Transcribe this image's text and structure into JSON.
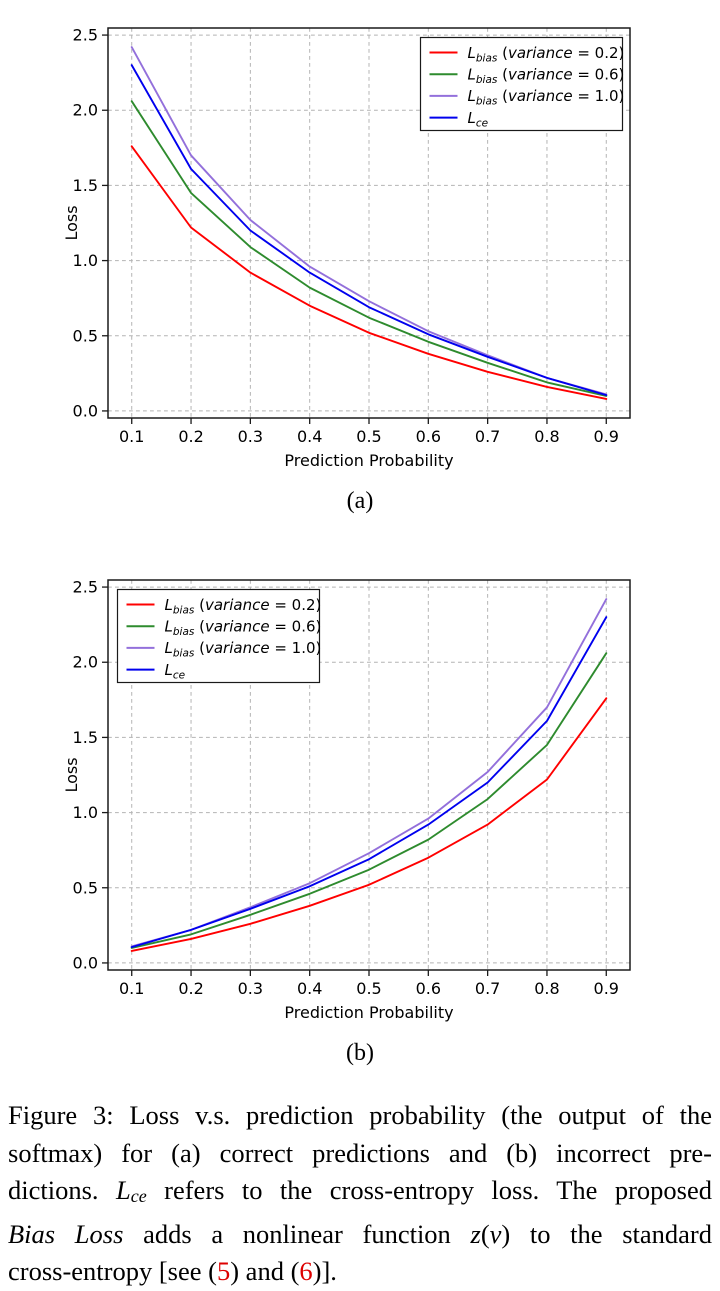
{
  "figure": {
    "sub_labels": [
      "(a)",
      "(b)"
    ]
  },
  "chart_data": [
    {
      "id": "a",
      "type": "line",
      "title": "",
      "xlabel": "Prediction Probability",
      "ylabel": "Loss",
      "xlim": [
        0.06,
        0.94
      ],
      "ylim": [
        -0.047,
        2.547
      ],
      "xticks": [
        0.1,
        0.2,
        0.3,
        0.4,
        0.5,
        0.6,
        0.7,
        0.8,
        0.9
      ],
      "xtick_labels": [
        "0.1",
        "0.2",
        "0.3",
        "0.4",
        "0.5",
        "0.6",
        "0.7",
        "0.8",
        "0.9"
      ],
      "yticks": [
        0.0,
        0.5,
        1.0,
        1.5,
        2.0,
        2.5
      ],
      "ytick_labels": [
        "0.0",
        "0.5",
        "1.0",
        "1.5",
        "2.0",
        "2.5"
      ],
      "grid": true,
      "legend_pos": "top-right",
      "sub_label": "(a)",
      "x": [
        0.1,
        0.2,
        0.3,
        0.4,
        0.5,
        0.6,
        0.7,
        0.8,
        0.9
      ],
      "series": [
        {
          "name": "L_bias (variance = 0.2)",
          "color": "#ff0000",
          "label_parts": {
            "sym": "L",
            "sub": "bias",
            "arg": "variance",
            "val": "0.2"
          },
          "values": [
            1.76,
            1.22,
            0.92,
            0.7,
            0.52,
            0.38,
            0.26,
            0.16,
            0.08
          ]
        },
        {
          "name": "L_bias (variance = 0.6)",
          "color": "#2e8b2e",
          "label_parts": {
            "sym": "L",
            "sub": "bias",
            "arg": "variance",
            "val": "0.6"
          },
          "values": [
            2.06,
            1.45,
            1.09,
            0.82,
            0.62,
            0.46,
            0.32,
            0.19,
            0.1
          ]
        },
        {
          "name": "L_bias (variance = 1.0)",
          "color": "#9370db",
          "label_parts": {
            "sym": "L",
            "sub": "bias",
            "arg": "variance",
            "val": "1.0"
          },
          "values": [
            2.42,
            1.7,
            1.27,
            0.96,
            0.73,
            0.53,
            0.37,
            0.22,
            0.11
          ]
        },
        {
          "name": "L_ce",
          "color": "#0000ee",
          "label_parts": {
            "sym": "L",
            "sub": "ce",
            "arg": "",
            "val": ""
          },
          "values": [
            2.3,
            1.61,
            1.2,
            0.92,
            0.69,
            0.51,
            0.36,
            0.22,
            0.105
          ]
        }
      ]
    },
    {
      "id": "b",
      "type": "line",
      "title": "",
      "xlabel": "Prediction Probability",
      "ylabel": "Loss",
      "xlim": [
        0.06,
        0.94
      ],
      "ylim": [
        -0.047,
        2.547
      ],
      "xticks": [
        0.1,
        0.2,
        0.3,
        0.4,
        0.5,
        0.6,
        0.7,
        0.8,
        0.9
      ],
      "xtick_labels": [
        "0.1",
        "0.2",
        "0.3",
        "0.4",
        "0.5",
        "0.6",
        "0.7",
        "0.8",
        "0.9"
      ],
      "yticks": [
        0.0,
        0.5,
        1.0,
        1.5,
        2.0,
        2.5
      ],
      "ytick_labels": [
        "0.0",
        "0.5",
        "1.0",
        "1.5",
        "2.0",
        "2.5"
      ],
      "grid": true,
      "legend_pos": "top-left",
      "sub_label": "(b)",
      "x": [
        0.1,
        0.2,
        0.3,
        0.4,
        0.5,
        0.6,
        0.7,
        0.8,
        0.9
      ],
      "series": [
        {
          "name": "L_bias (variance = 0.2)",
          "color": "#ff0000",
          "label_parts": {
            "sym": "L",
            "sub": "bias",
            "arg": "variance",
            "val": "0.2"
          },
          "values": [
            0.08,
            0.16,
            0.26,
            0.38,
            0.52,
            0.7,
            0.92,
            1.22,
            1.76
          ]
        },
        {
          "name": "L_bias (variance = 0.6)",
          "color": "#2e8b2e",
          "label_parts": {
            "sym": "L",
            "sub": "bias",
            "arg": "variance",
            "val": "0.6"
          },
          "values": [
            0.1,
            0.19,
            0.32,
            0.46,
            0.62,
            0.82,
            1.09,
            1.45,
            2.06
          ]
        },
        {
          "name": "L_bias (variance = 1.0)",
          "color": "#9370db",
          "label_parts": {
            "sym": "L",
            "sub": "bias",
            "arg": "variance",
            "val": "1.0"
          },
          "values": [
            0.11,
            0.22,
            0.37,
            0.53,
            0.73,
            0.96,
            1.27,
            1.7,
            2.42
          ]
        },
        {
          "name": "L_ce",
          "color": "#0000ee",
          "label_parts": {
            "sym": "L",
            "sub": "ce",
            "arg": "",
            "val": ""
          },
          "values": [
            0.105,
            0.22,
            0.36,
            0.51,
            0.69,
            0.92,
            1.2,
            1.61,
            2.3
          ]
        }
      ]
    }
  ],
  "caption": {
    "ref_color": "#dd0000",
    "lines": [
      {
        "justify": true,
        "segments": [
          {
            "t": "Figure 3: Loss v.s. prediction probability (the output of the",
            "s": "n"
          }
        ]
      },
      {
        "justify": true,
        "segments": [
          {
            "t": "softmax) for (a) correct predictions and (b) incorrect pre-",
            "s": "n"
          }
        ]
      },
      {
        "justify": true,
        "segments": [
          {
            "t": "dictions. ",
            "s": "n"
          },
          {
            "t": "L",
            "s": "i"
          },
          {
            "t": "ce",
            "s": "sub"
          },
          {
            "t": " refers to the cross-entropy loss. The proposed",
            "s": "n"
          }
        ]
      },
      {
        "justify": true,
        "segments": [
          {
            "t": "Bias Loss",
            "s": "i"
          },
          {
            "t": " adds a nonlinear function ",
            "s": "n"
          },
          {
            "t": "z",
            "s": "i"
          },
          {
            "t": "(",
            "s": "n"
          },
          {
            "t": "v",
            "s": "i"
          },
          {
            "t": ")",
            "s": "n"
          },
          {
            "t": " to the standard",
            "s": "n"
          }
        ]
      },
      {
        "justify": false,
        "segments": [
          {
            "t": "cross-entropy [see (",
            "s": "n"
          },
          {
            "t": "5",
            "s": "ref"
          },
          {
            "t": ") and (",
            "s": "n"
          },
          {
            "t": "6",
            "s": "ref"
          },
          {
            "t": ")].",
            "s": "n"
          }
        ]
      }
    ]
  }
}
